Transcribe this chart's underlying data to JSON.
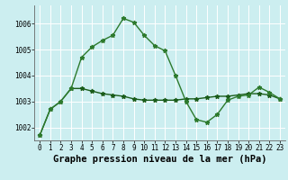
{
  "title": "Graphe pression niveau de la mer (hPa)",
  "background_color": "#cceef0",
  "grid_color": "#ffffff",
  "line_color_dark": "#1a5c1a",
  "line_color_mid": "#2d7a2d",
  "x_values": [
    0,
    1,
    2,
    3,
    4,
    5,
    6,
    7,
    8,
    9,
    10,
    11,
    12,
    13,
    14,
    15,
    16,
    17,
    18,
    19,
    20,
    21,
    22,
    23
  ],
  "series_flat": [
    1001.7,
    1002.7,
    1003.0,
    1003.5,
    1003.5,
    1003.4,
    1003.3,
    1003.25,
    1003.2,
    1003.1,
    1003.05,
    1003.05,
    1003.05,
    1003.05,
    1003.1,
    1003.1,
    1003.15,
    1003.2,
    1003.2,
    1003.25,
    1003.3,
    1003.3,
    1003.25,
    1003.1
  ],
  "series_wave": [
    1001.7,
    1002.7,
    1003.0,
    1003.5,
    1004.7,
    1005.1,
    1005.35,
    1005.55,
    1006.2,
    1006.05,
    1005.55,
    1005.15,
    1004.95,
    1004.0,
    1003.0,
    1002.3,
    1002.2,
    1002.5,
    1003.05,
    1003.2,
    1003.25,
    1003.55,
    1003.35,
    1003.1
  ],
  "ylim": [
    1001.5,
    1006.7
  ],
  "yticks": [
    1002,
    1003,
    1004,
    1005,
    1006
  ],
  "xtick_labels": [
    "0",
    "1",
    "2",
    "3",
    "4",
    "5",
    "6",
    "7",
    "8",
    "9",
    "10",
    "11",
    "12",
    "13",
    "14",
    "15",
    "16",
    "17",
    "18",
    "19",
    "20",
    "21",
    "22",
    "23"
  ],
  "marker": "*",
  "marker_size": 3.5,
  "line_width": 1.0,
  "title_fontsize": 7.5,
  "tick_fontsize": 5.5
}
